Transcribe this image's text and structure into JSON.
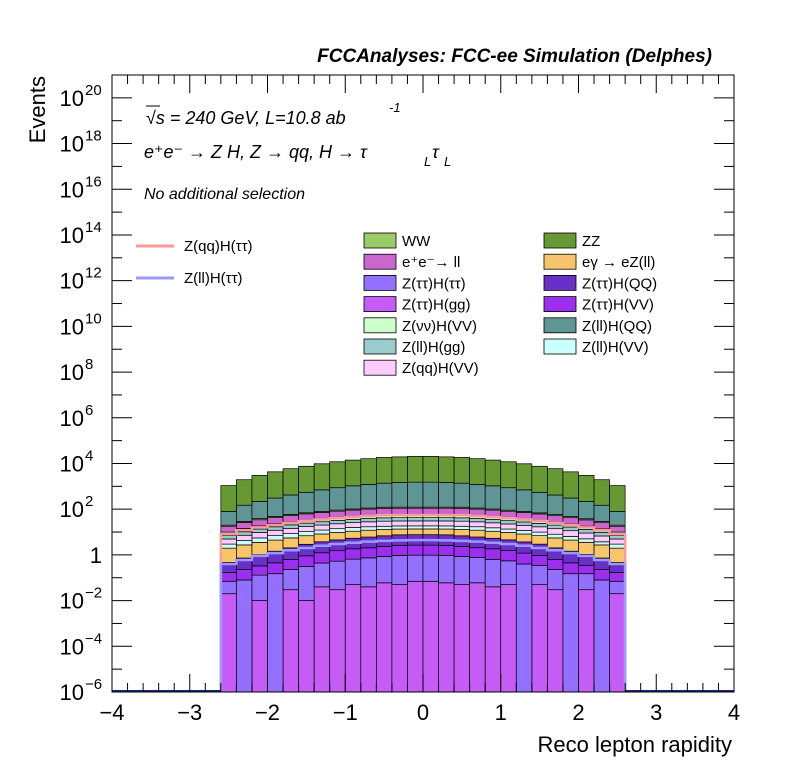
{
  "header": {
    "title": "FCCAnalyses: FCC-ee Simulation (Delphes)"
  },
  "annotations": {
    "energy_lumi": "√s = 240 GeV, L=10.8 ab",
    "lumi_exp": "-1",
    "process_base": "e⁺e⁻ → Z H, Z → qq, H → τ",
    "process_sub": "L",
    "process_tau2": "τ",
    "selection": "No additional selection"
  },
  "chart_data": {
    "type": "area",
    "subtype": "stacked histogram with signal overlay lines, log y",
    "xlabel": "Reco lepton rapidity",
    "ylabel": "Events",
    "xlim": [
      -4,
      4
    ],
    "ylim": [
      1e-06,
      1e+21
    ],
    "yscale": "log",
    "x_tick_labels": [
      "−4",
      "−3",
      "−2",
      "−1",
      "0",
      "1",
      "2",
      "3",
      "4"
    ],
    "y_tick_labels": [
      {
        "base": "10",
        "exp": "20"
      },
      {
        "base": "10",
        "exp": "18"
      },
      {
        "base": "10",
        "exp": "16"
      },
      {
        "base": "10",
        "exp": "14"
      },
      {
        "base": "10",
        "exp": "12"
      },
      {
        "base": "10",
        "exp": "10"
      },
      {
        "base": "10",
        "exp": "8"
      },
      {
        "base": "10",
        "exp": "6"
      },
      {
        "base": "10",
        "exp": "4"
      },
      {
        "base": "10",
        "exp": "2"
      },
      {
        "base": "1",
        "exp": ""
      },
      {
        "base": "10",
        "exp": "−2"
      },
      {
        "base": "10",
        "exp": "−4"
      },
      {
        "base": "10",
        "exp": "−6"
      }
    ],
    "bins": {
      "start": -2.6,
      "width": 0.2,
      "count": 26
    },
    "stack": [
      {
        "name": "Z(ττ)H(gg)",
        "color": "#c45cf5",
        "values": [
          0.02,
          1e-06,
          0.01,
          1e-06,
          0.03,
          0.01,
          0.04,
          0.03,
          0.05,
          0.04,
          0.06,
          0.05,
          0.07,
          0.07,
          0.06,
          0.05,
          0.06,
          0.04,
          0.05,
          1e-06,
          0.05,
          0.03,
          1e-06,
          0.03,
          1e-06,
          0.02
        ]
      },
      {
        "name": "Z(ττ)H(ττ)",
        "color": "#9370ff",
        "values": [
          0.05,
          0.08,
          0.12,
          0.15,
          0.2,
          0.3,
          0.4,
          0.5,
          0.6,
          0.7,
          0.8,
          0.9,
          0.9,
          0.9,
          0.9,
          0.8,
          0.7,
          0.6,
          0.5,
          0.4,
          0.3,
          0.2,
          0.15,
          0.12,
          0.08,
          0.05
        ]
      },
      {
        "name": "Z(ττ)H(VV)",
        "color": "#9b2ff0",
        "values": [
          0.1,
          0.15,
          0.2,
          0.3,
          0.4,
          0.6,
          0.8,
          1.0,
          1.2,
          1.3,
          1.5,
          1.6,
          1.7,
          1.7,
          1.6,
          1.5,
          1.3,
          1.2,
          1.0,
          0.8,
          0.6,
          0.4,
          0.3,
          0.2,
          0.15,
          0.1
        ]
      },
      {
        "name": "Z(ττ)H(QQ)",
        "color": "#6a2fc8",
        "values": [
          0.3,
          0.5,
          0.7,
          1.0,
          1.4,
          2,
          2.5,
          3,
          3.5,
          4,
          4.5,
          5,
          5,
          5,
          5,
          4.5,
          4,
          3.5,
          3,
          2.5,
          2,
          1.4,
          1.0,
          0.7,
          0.5,
          0.3
        ]
      },
      {
        "name": "eγ → eZ(ll)",
        "color": "#f8c66a",
        "values": [
          1.5,
          2,
          2.5,
          3,
          3.5,
          4,
          4.5,
          5,
          5.5,
          6,
          6,
          6,
          6,
          6,
          6,
          6,
          6,
          5.5,
          5,
          4.5,
          4,
          3.5,
          3,
          2.5,
          2,
          1.5
        ]
      },
      {
        "name": "Z(ll)H(VV)",
        "color": "#ccffff",
        "values": [
          1,
          1.5,
          2,
          2.5,
          3,
          3.5,
          4,
          4.5,
          5,
          5,
          5,
          5,
          5,
          5,
          5,
          5,
          5,
          4.5,
          4,
          3.5,
          3,
          2.5,
          2,
          1.5,
          1,
          1
        ]
      },
      {
        "name": "Z(qq)H(VV)",
        "color": "#ffccff",
        "values": [
          2,
          3,
          4,
          5,
          6,
          7,
          8,
          9,
          10,
          11,
          12,
          12,
          12,
          12,
          12,
          12,
          11,
          10,
          9,
          8,
          7,
          6,
          5,
          4,
          3,
          2
        ]
      },
      {
        "name": "Z(ll)H(gg)",
        "color": "#99cccc",
        "values": [
          2,
          3,
          4,
          5,
          6,
          7,
          8,
          9,
          10,
          11,
          12,
          12,
          12,
          12,
          12,
          12,
          11,
          10,
          9,
          8,
          7,
          6,
          5,
          4,
          3,
          2
        ]
      },
      {
        "name": "Z(νν)H(VV)",
        "color": "#ccffcc",
        "values": [
          3,
          4,
          5,
          6,
          7,
          8,
          9,
          10,
          11,
          12,
          13,
          13,
          13,
          13,
          13,
          13,
          12,
          11,
          10,
          9,
          8,
          7,
          6,
          5,
          4,
          3
        ]
      },
      {
        "name": "e⁺e⁻→ ll",
        "color": "#cc66cc",
        "values": [
          8,
          12,
          16,
          20,
          25,
          30,
          35,
          40,
          45,
          50,
          55,
          55,
          55,
          55,
          55,
          55,
          50,
          45,
          40,
          35,
          30,
          25,
          20,
          16,
          12,
          8
        ]
      },
      {
        "name": "WW",
        "color": "#99cc66",
        "values": [
          2,
          3,
          4,
          5,
          6,
          7,
          8,
          9,
          10,
          11,
          12,
          12,
          12,
          12,
          12,
          12,
          11,
          10,
          9,
          8,
          7,
          6,
          5,
          4,
          3,
          2
        ]
      },
      {
        "name": "Z(ll)H(QQ)",
        "color": "#5f9595",
        "values": [
          60,
          120,
          180,
          260,
          360,
          480,
          620,
          780,
          950,
          1100,
          1250,
          1350,
          1400,
          1400,
          1350,
          1250,
          1100,
          950,
          780,
          620,
          480,
          360,
          260,
          180,
          120,
          60
        ]
      },
      {
        "name": "ZZ",
        "color": "#669933",
        "values": [
          1000,
          1800,
          2800,
          4000,
          5500,
          7000,
          9000,
          11000,
          13000,
          15000,
          17000,
          18000,
          19000,
          19000,
          18000,
          17000,
          15000,
          13000,
          11000,
          9000,
          7000,
          5500,
          4000,
          2800,
          1800,
          1000
        ]
      }
    ],
    "overlays": [
      {
        "name": "Z(qq)H(ττ)",
        "color": "#ff9999",
        "values": [
          8,
          12,
          16,
          20,
          25,
          30,
          35,
          40,
          45,
          50,
          55,
          55,
          55,
          55,
          55,
          55,
          50,
          45,
          40,
          35,
          30,
          25,
          20,
          16,
          12,
          8
        ]
      },
      {
        "name": "Z(ll)H(ττ)",
        "color": "#9999ff",
        "values": [
          0.4,
          0.6,
          0.9,
          1.2,
          1.6,
          2,
          2.5,
          3,
          3.4,
          3.8,
          4.1,
          4.3,
          4.4,
          4.4,
          4.3,
          4.1,
          3.8,
          3.4,
          3,
          2.5,
          2,
          1.6,
          1.2,
          0.9,
          0.6,
          0.4
        ]
      }
    ],
    "legend_left": [
      "Z(qq)H(ττ)",
      "Z(ll)H(ττ)"
    ],
    "legend_right_rows": [
      [
        "WW",
        "ZZ"
      ],
      [
        "e⁺e⁻→ ll",
        "eγ → eZ(ll)"
      ],
      [
        "Z(ττ)H(ττ)",
        "Z(ττ)H(QQ)"
      ],
      [
        "Z(ττ)H(gg)",
        "Z(ττ)H(VV)"
      ],
      [
        "Z(νν)H(VV)",
        "Z(ll)H(QQ)"
      ],
      [
        "Z(ll)H(gg)",
        "Z(ll)H(VV)"
      ],
      [
        "Z(qq)H(VV)",
        ""
      ]
    ],
    "legend_placement": "top"
  }
}
